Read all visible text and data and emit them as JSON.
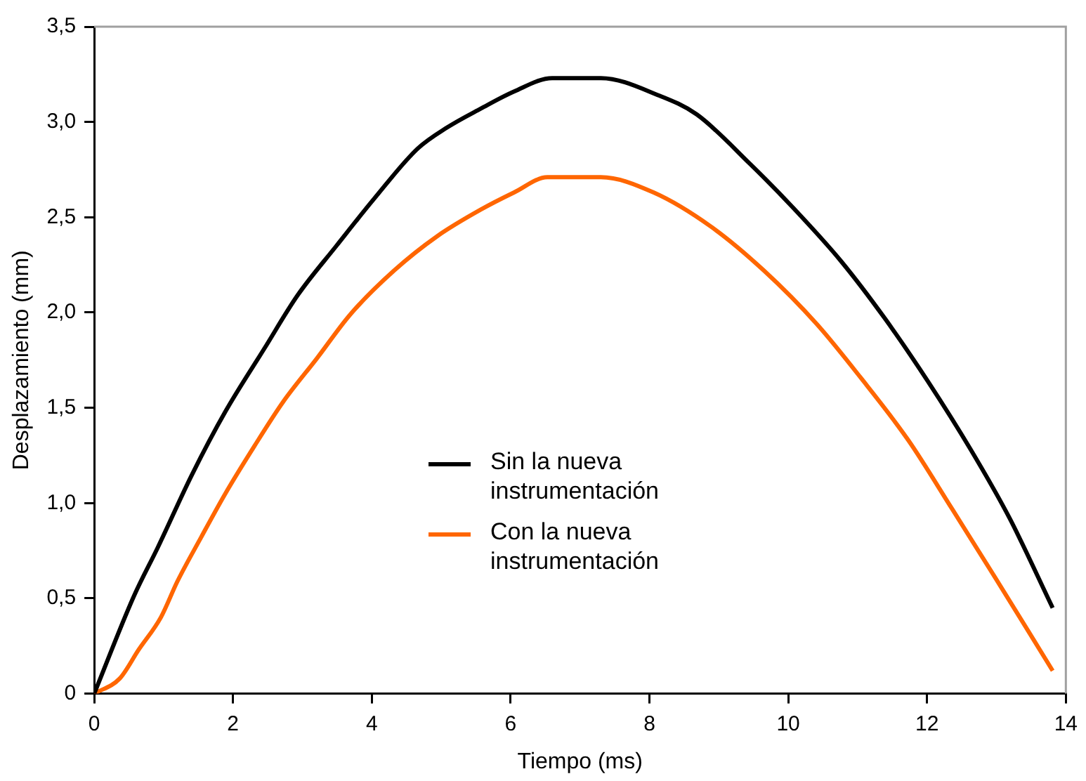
{
  "chart_data": {
    "type": "line",
    "xlabel": "Tiempo (ms)",
    "ylabel": "Desplazamiento (mm)",
    "xlim": [
      0,
      14
    ],
    "xticks": [
      0,
      2,
      4,
      6,
      8,
      10,
      12,
      14
    ],
    "ylim": [
      0,
      3.5
    ],
    "yticks": [
      0,
      {
        "value": 0.5,
        "label": "0,5"
      },
      {
        "value": 1,
        "label": "1,0"
      },
      {
        "value": 1.5,
        "label": "1,5"
      },
      {
        "value": 2,
        "label": "2,0"
      },
      {
        "value": 2.5,
        "label": "2,5"
      },
      {
        "value": 3,
        "label": "3,0"
      },
      {
        "value": 3.5,
        "label": "3,5"
      }
    ],
    "grid": false,
    "legend": "center",
    "marker": "none",
    "line_style": "solid",
    "series": [
      {
        "name": "Sin la nueva instrumentación",
        "color": "#000000",
        "x": [
          0,
          0.57,
          0.92,
          1.41,
          1.89,
          2.45,
          2.93,
          3.49,
          4.04,
          4.66,
          5.08,
          5.57,
          6.05,
          6.6,
          7.3,
          8.13,
          8.68,
          9.45,
          10.07,
          10.76,
          11.39,
          12.01,
          12.63,
          13.19,
          13.81
        ],
        "values": [
          0,
          0.51,
          0.77,
          1.15,
          1.48,
          1.81,
          2.09,
          2.35,
          2.6,
          2.86,
          2.97,
          3.07,
          3.16,
          3.23,
          3.23,
          3.14,
          3.04,
          2.78,
          2.55,
          2.27,
          1.97,
          1.64,
          1.28,
          0.92,
          0.45
        ]
      },
      {
        "name": "Con la nueva instrumentación",
        "color": "#ff6600",
        "x": [
          0,
          0.37,
          0.64,
          0.96,
          1.2,
          1.54,
          1.89,
          2.31,
          2.72,
          3.21,
          3.69,
          4.32,
          4.94,
          5.57,
          6.05,
          6.53,
          7.3,
          8.06,
          8.89,
          9.65,
          10.41,
          11.04,
          11.73,
          12.36,
          12.98,
          13.54,
          13.81
        ],
        "values": [
          0,
          0.08,
          0.23,
          0.4,
          0.59,
          0.82,
          1.05,
          1.3,
          1.53,
          1.76,
          1.99,
          2.22,
          2.4,
          2.54,
          2.63,
          2.71,
          2.71,
          2.63,
          2.45,
          2.22,
          1.94,
          1.66,
          1.33,
          0.97,
          0.61,
          0.28,
          0.12
        ]
      }
    ]
  }
}
